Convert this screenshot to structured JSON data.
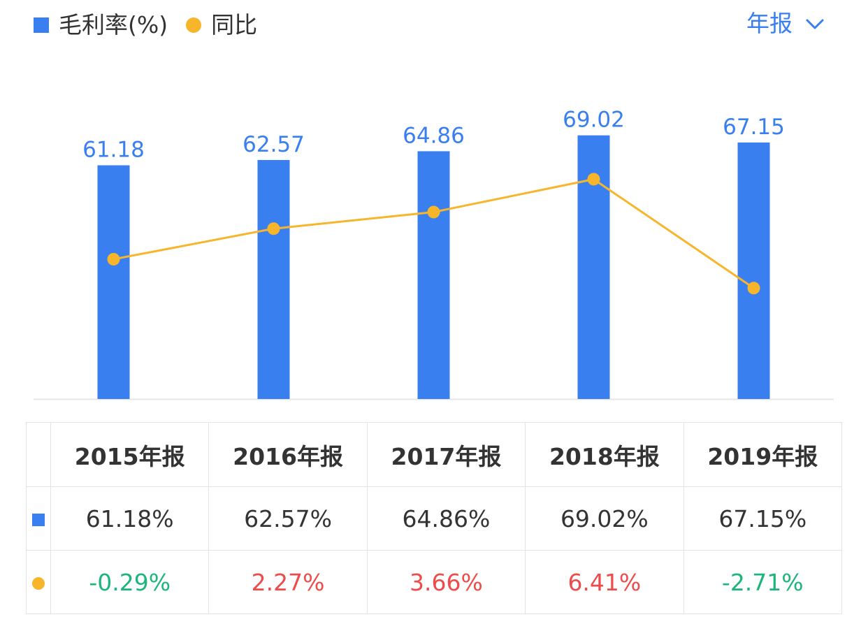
{
  "legend": {
    "bar_label": "毛利率(%)",
    "line_label": "同比"
  },
  "period_selector": {
    "label": "年报"
  },
  "colors": {
    "bar": "#3a7ff0",
    "line": "#f7b52c",
    "bar_label": "#3a7ff0",
    "positive": "#ee4b4b",
    "negative": "#1db57a",
    "axis": "#e6e6e6"
  },
  "chart_data": {
    "type": "bar",
    "categories": [
      "2015年报",
      "2016年报",
      "2017年报",
      "2018年报",
      "2019年报"
    ],
    "series": [
      {
        "name": "毛利率(%)",
        "type": "bar",
        "values": [
          61.18,
          62.57,
          64.86,
          69.02,
          67.15
        ]
      },
      {
        "name": "同比",
        "type": "line",
        "values": [
          -0.29,
          2.27,
          3.66,
          6.41,
          -2.71
        ]
      }
    ],
    "bar_ylim": [
      0,
      75
    ],
    "line_ylim": [
      -12,
      12
    ]
  },
  "table": {
    "headers": [
      "2015年报",
      "2016年报",
      "2017年报",
      "2018年报",
      "2019年报"
    ],
    "bar_row": [
      "61.18%",
      "62.57%",
      "64.86%",
      "69.02%",
      "67.15%"
    ],
    "line_row": [
      "-0.29%",
      "2.27%",
      "3.66%",
      "6.41%",
      "-2.71%"
    ]
  }
}
